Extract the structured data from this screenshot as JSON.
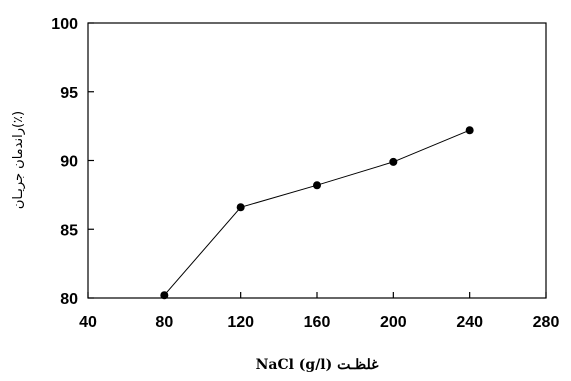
{
  "chart_data": {
    "type": "line",
    "x": [
      80,
      120,
      160,
      200,
      240
    ],
    "series": [
      {
        "values": [
          80.2,
          86.6,
          88.2,
          89.9,
          92.2
        ]
      }
    ],
    "xlim": [
      40,
      280
    ],
    "ylim": [
      80,
      100
    ],
    "x_ticks": [
      "40",
      "80",
      "120",
      "160",
      "200",
      "240",
      "280"
    ],
    "y_ticks": [
      "80",
      "85",
      "90",
      "95",
      "100"
    ],
    "xlabel": "غلظـت NaCl (g/l)",
    "ylabel": "راندمان جریـان(٪)",
    "grid": false,
    "marker": "filled-circle",
    "color": "#000000"
  }
}
